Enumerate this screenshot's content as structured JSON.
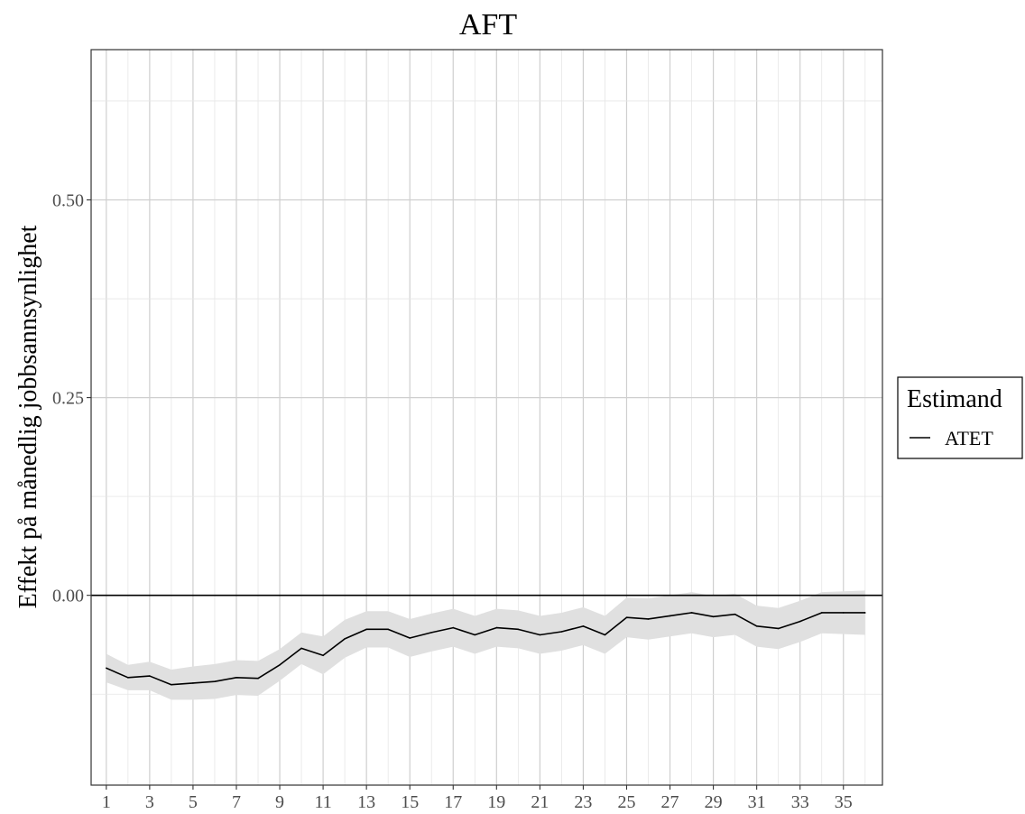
{
  "chart_data": {
    "type": "line",
    "title": "AFT",
    "xlabel": "",
    "ylabel": "Effekt på månedlig jobbsannsynlighet",
    "xlim": [
      0.3,
      36.8
    ],
    "ylim": [
      -0.24,
      0.69
    ],
    "x_ticks": [
      1,
      3,
      5,
      7,
      9,
      11,
      13,
      15,
      17,
      19,
      21,
      23,
      25,
      27,
      29,
      31,
      33,
      35
    ],
    "x_tick_labels": [
      "1",
      "3",
      "5",
      "7",
      "9",
      "11",
      "13",
      "15",
      "17",
      "19",
      "21",
      "23",
      "25",
      "27",
      "29",
      "31",
      "33",
      "35"
    ],
    "y_ticks": [
      0.0,
      0.25,
      0.5
    ],
    "y_tick_labels": [
      "0.00",
      "0.25",
      "0.50"
    ],
    "y_minor_gridlines": [
      -0.125,
      0.125,
      0.375,
      0.625
    ],
    "grid": true,
    "reference_line_y": 0,
    "legend": {
      "title": "Estimand",
      "position": "right",
      "entries": [
        "ATET"
      ]
    },
    "series": [
      {
        "name": "ATET",
        "color": "#000000",
        "ribbon_color": "#e0e0e0",
        "x": [
          1,
          2,
          3,
          4,
          5,
          6,
          7,
          8,
          9,
          10,
          11,
          12,
          13,
          14,
          15,
          16,
          17,
          18,
          19,
          20,
          21,
          22,
          23,
          24,
          25,
          26,
          27,
          28,
          29,
          30,
          31,
          32,
          33,
          34,
          35,
          36
        ],
        "values": [
          -0.092,
          -0.104,
          -0.102,
          -0.113,
          -0.111,
          -0.109,
          -0.104,
          -0.105,
          -0.088,
          -0.067,
          -0.076,
          -0.055,
          -0.043,
          -0.043,
          -0.054,
          -0.047,
          -0.041,
          -0.05,
          -0.041,
          -0.043,
          -0.05,
          -0.046,
          -0.039,
          -0.05,
          -0.028,
          -0.03,
          -0.026,
          -0.022,
          -0.027,
          -0.024,
          -0.039,
          -0.042,
          -0.033,
          -0.022,
          -0.022,
          -0.022
        ],
        "lower": [
          -0.11,
          -0.12,
          -0.12,
          -0.132,
          -0.132,
          -0.131,
          -0.126,
          -0.127,
          -0.108,
          -0.087,
          -0.1,
          -0.079,
          -0.066,
          -0.066,
          -0.078,
          -0.071,
          -0.065,
          -0.074,
          -0.065,
          -0.067,
          -0.074,
          -0.07,
          -0.063,
          -0.074,
          -0.053,
          -0.056,
          -0.052,
          -0.048,
          -0.053,
          -0.05,
          -0.065,
          -0.068,
          -0.059,
          -0.048,
          -0.049,
          -0.05
        ],
        "upper": [
          -0.074,
          -0.088,
          -0.084,
          -0.094,
          -0.09,
          -0.087,
          -0.082,
          -0.083,
          -0.068,
          -0.047,
          -0.052,
          -0.031,
          -0.02,
          -0.02,
          -0.03,
          -0.023,
          -0.017,
          -0.026,
          -0.017,
          -0.019,
          -0.026,
          -0.022,
          -0.015,
          -0.026,
          -0.003,
          -0.004,
          0.0,
          0.004,
          -0.001,
          0.002,
          -0.013,
          -0.016,
          -0.007,
          0.004,
          0.005,
          0.006
        ]
      }
    ]
  }
}
